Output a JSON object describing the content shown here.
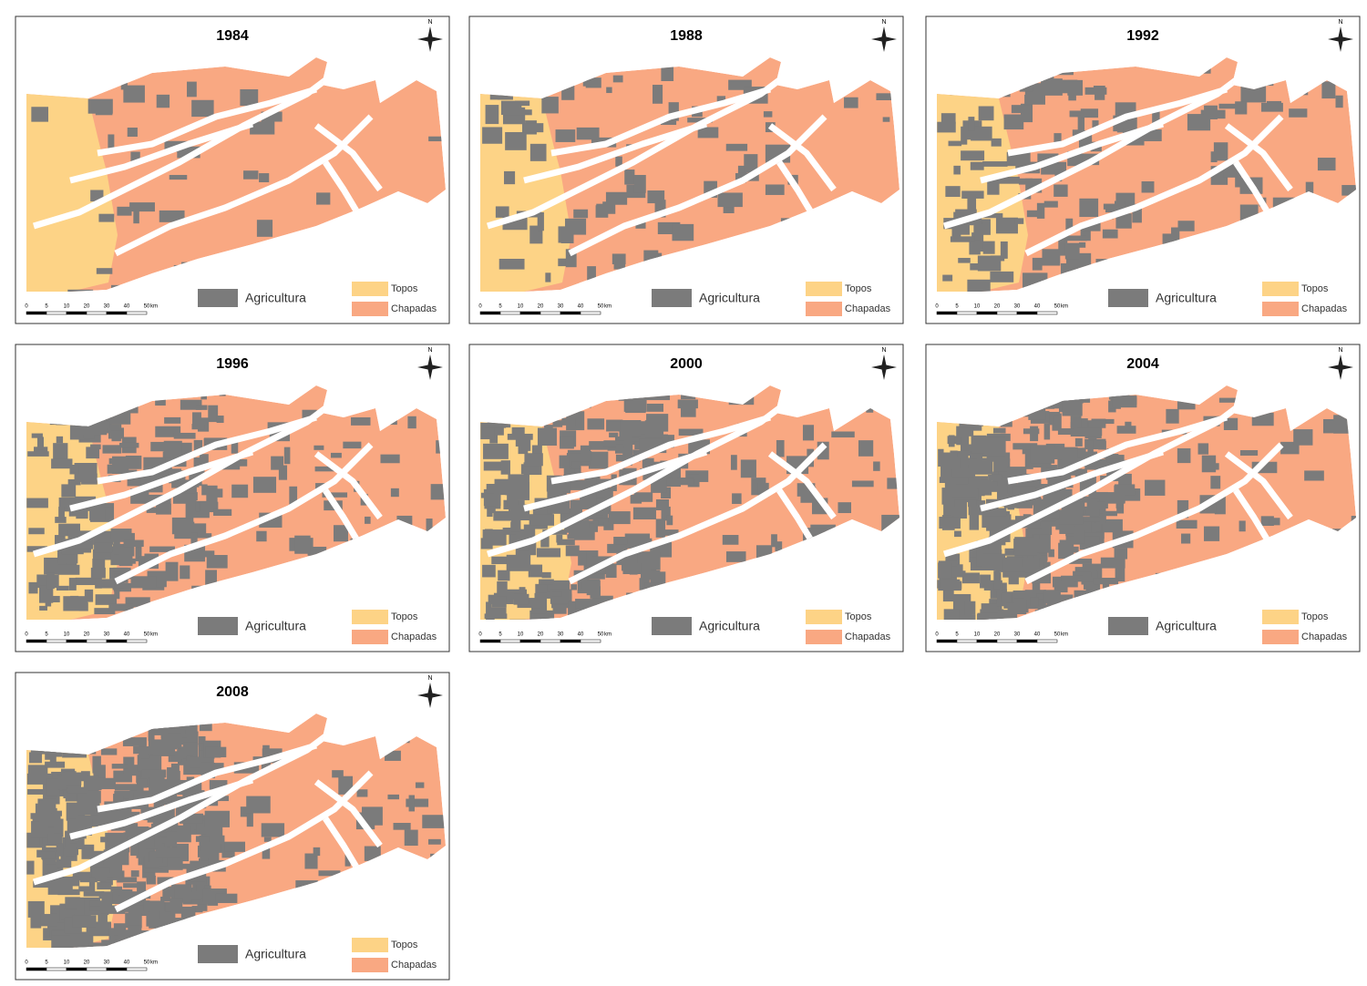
{
  "panels": [
    {
      "title": "1984"
    },
    {
      "title": "1988"
    },
    {
      "title": "1992"
    },
    {
      "title": "1996"
    },
    {
      "title": "2000"
    },
    {
      "title": "2004"
    },
    {
      "title": "2008"
    }
  ],
  "legend": {
    "agricultura": "Agricultura",
    "topos": "Topos",
    "chapadas": "Chapadas"
  },
  "scalebar": {
    "ticks": [
      "0",
      "5",
      "10",
      "20",
      "30",
      "40",
      "50"
    ],
    "unit": "km"
  },
  "north": "N"
}
